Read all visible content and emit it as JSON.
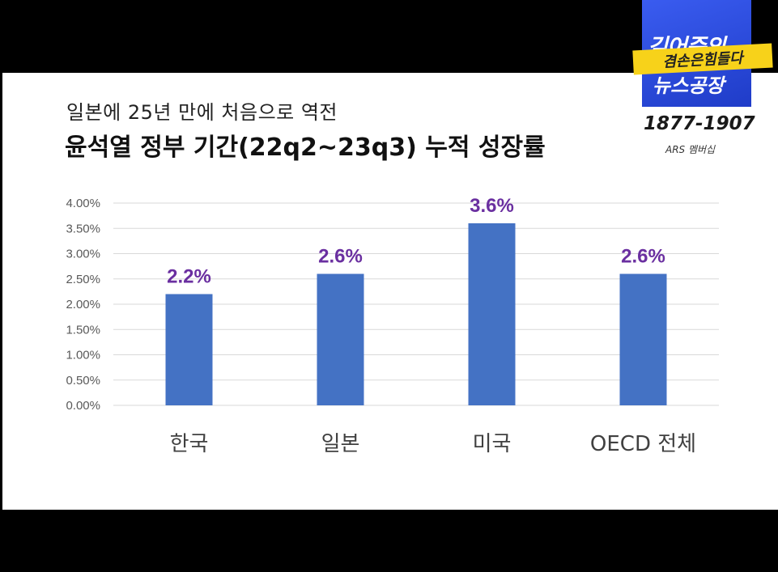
{
  "subtitle": "일본에 25년 만에 처음으로 역전",
  "title": "윤석열 정부 기간(22q2~23q3) 누적 성장률",
  "logo": {
    "line1": "김어준의",
    "yellow": "겸손은힘들다",
    "line2": "뉴스공장",
    "years": "1877-1907",
    "ars": "ARS 멤버십"
  },
  "colors": {
    "bar": "#4472c4",
    "label": "#6a2fa0",
    "grid": "#d9d9d9",
    "logo_blue": "#2a48e0",
    "logo_yellow": "#f7d21a"
  },
  "chart_data": {
    "type": "bar",
    "categories": [
      "한국",
      "일본",
      "미국",
      "OECD 전체"
    ],
    "values": [
      2.2,
      2.6,
      3.6,
      2.6
    ],
    "data_labels": [
      "2.2%",
      "2.6%",
      "3.6%",
      "2.6%"
    ],
    "ylim": [
      0,
      4.0
    ],
    "yticks": [
      "0.00%",
      "0.50%",
      "1.00%",
      "1.50%",
      "2.00%",
      "2.50%",
      "3.00%",
      "3.50%",
      "4.00%"
    ],
    "grid": true
  }
}
